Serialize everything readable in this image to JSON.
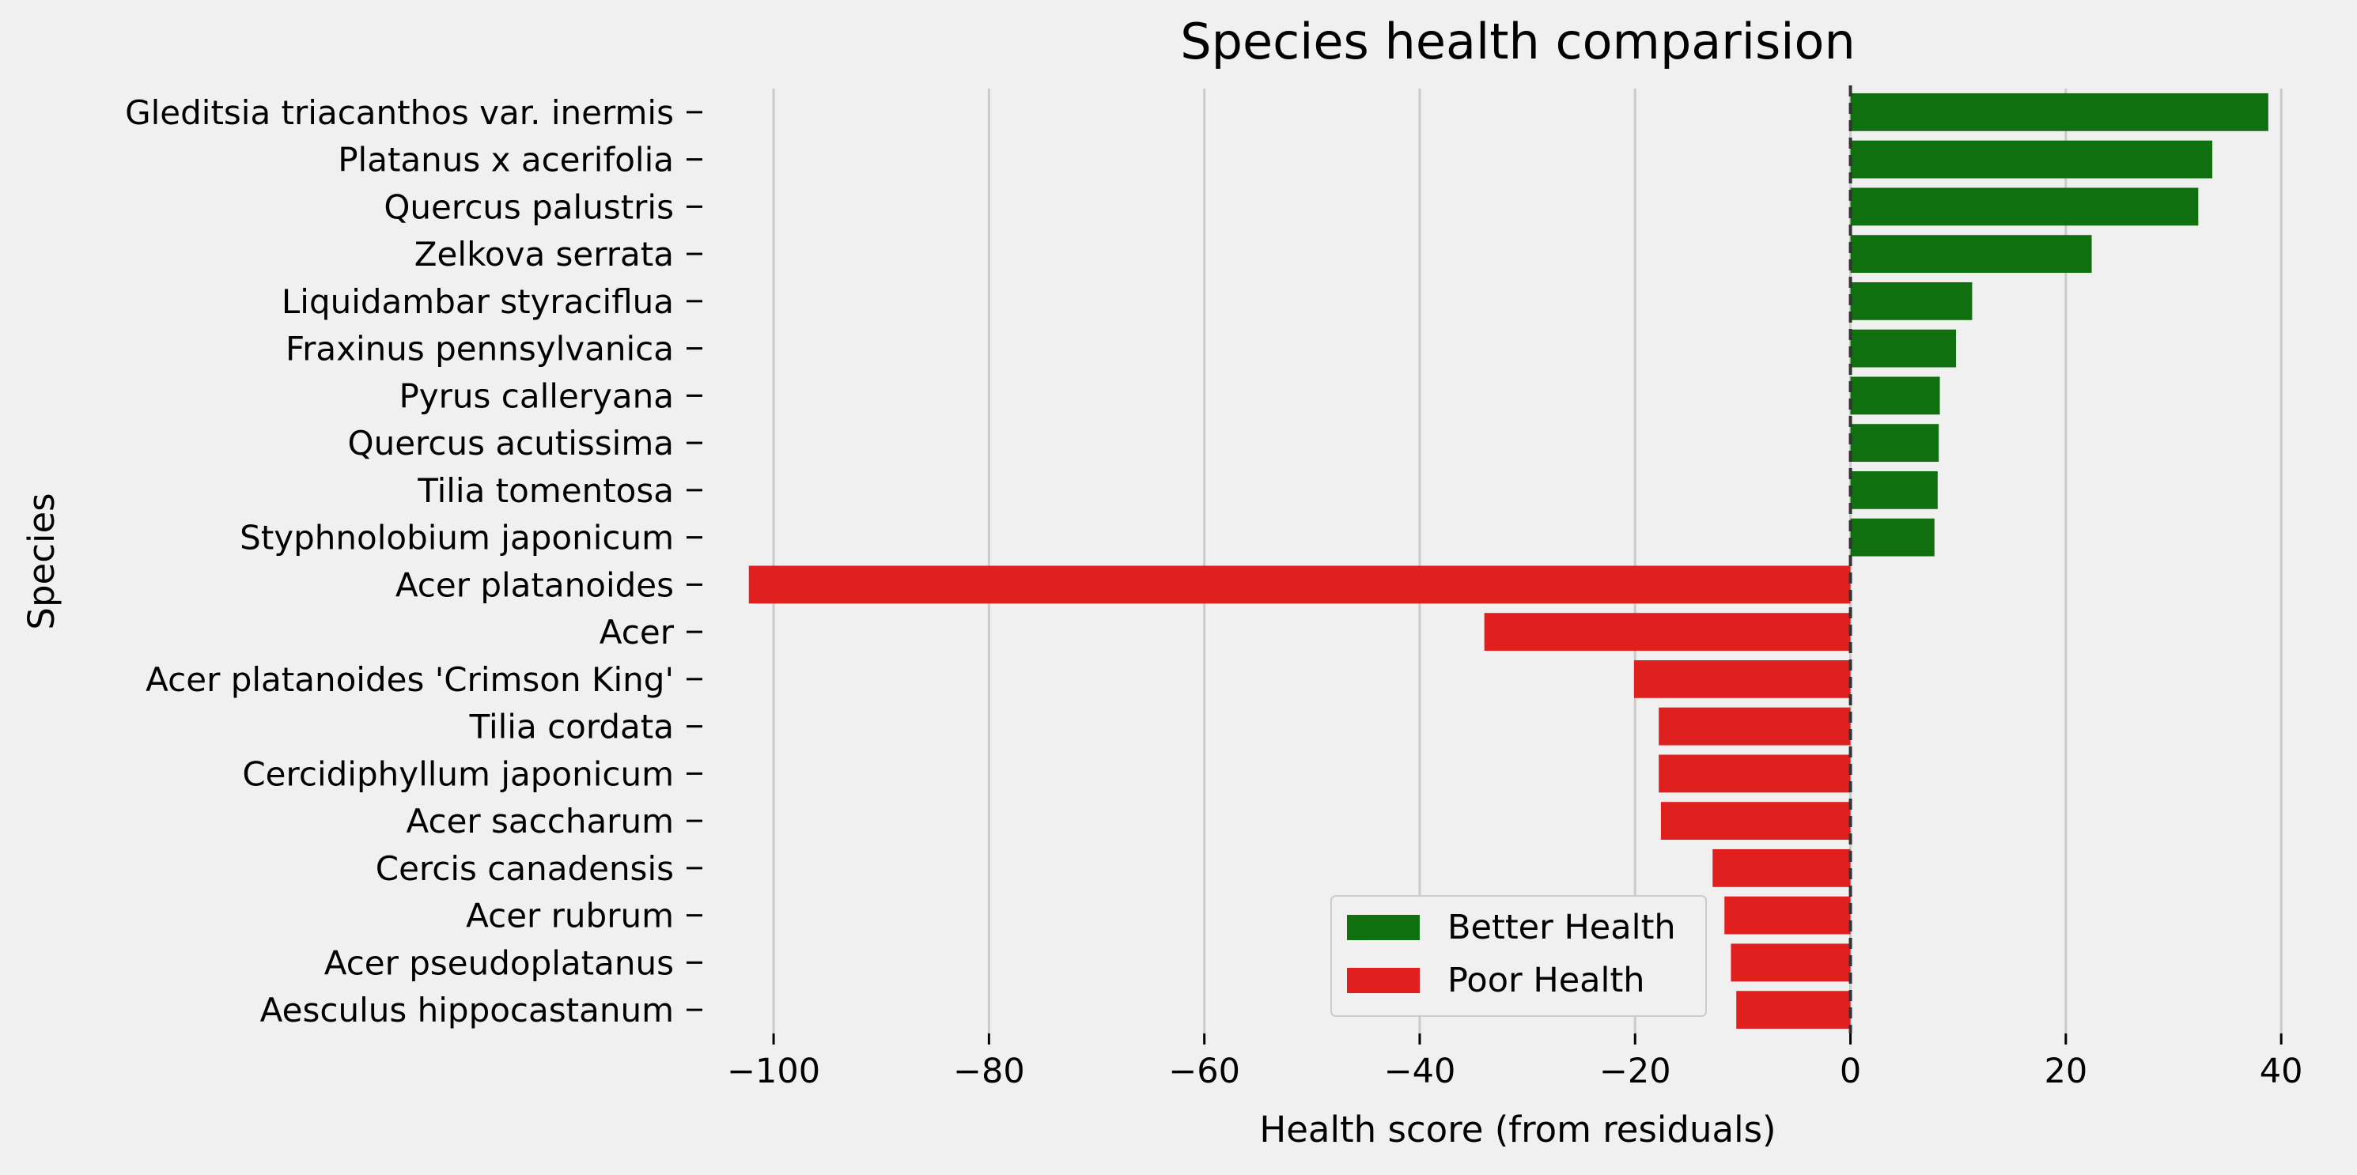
{
  "chart_data": {
    "type": "bar",
    "orientation": "horizontal",
    "title": "Species health comparision",
    "xlabel": "Health score (from residuals)",
    "ylabel": "Species",
    "xlim": [
      -105,
      43
    ],
    "xticks": [
      -100,
      -80,
      -60,
      -40,
      -20,
      0,
      20,
      40
    ],
    "xtick_labels": [
      "−100",
      "−80",
      "−60",
      "−40",
      "−20",
      "0",
      "20",
      "40"
    ],
    "grid": "x",
    "reference_line": {
      "x": 0,
      "style": "dashed"
    },
    "categories": [
      "Gleditsia triacanthos var. inermis",
      "Platanus x acerifolia",
      "Quercus palustris",
      "Zelkova serrata",
      "Liquidambar styraciflua",
      "Fraxinus pennsylvanica",
      "Pyrus calleryana",
      "Quercus acutissima",
      "Tilia tomentosa",
      "Styphnolobium japonicum",
      "Acer platanoides",
      "Acer",
      "Acer platanoides 'Crimson King'",
      "Tilia cordata",
      "Cercidiphyllum japonicum",
      "Acer saccharum",
      "Cercis canadensis",
      "Acer rubrum",
      "Acer pseudoplatanus",
      "Aesculus hippocastanum"
    ],
    "values": [
      38.8,
      33.6,
      32.3,
      22.4,
      11.3,
      9.8,
      8.3,
      8.2,
      8.1,
      7.8,
      -102.3,
      -34.0,
      -20.1,
      -17.8,
      -17.8,
      -17.6,
      -12.8,
      -11.7,
      -11.1,
      -10.6
    ],
    "legend": {
      "position": "lower-center",
      "entries": [
        {
          "label": "Better Health",
          "color": "#107010"
        },
        {
          "label": "Poor Health",
          "color": "#e01f1f"
        }
      ]
    },
    "colors": {
      "positive": "#107010",
      "negative": "#e01f1f",
      "grid": "#cbcbcb",
      "background": "#f0f0f0"
    }
  }
}
